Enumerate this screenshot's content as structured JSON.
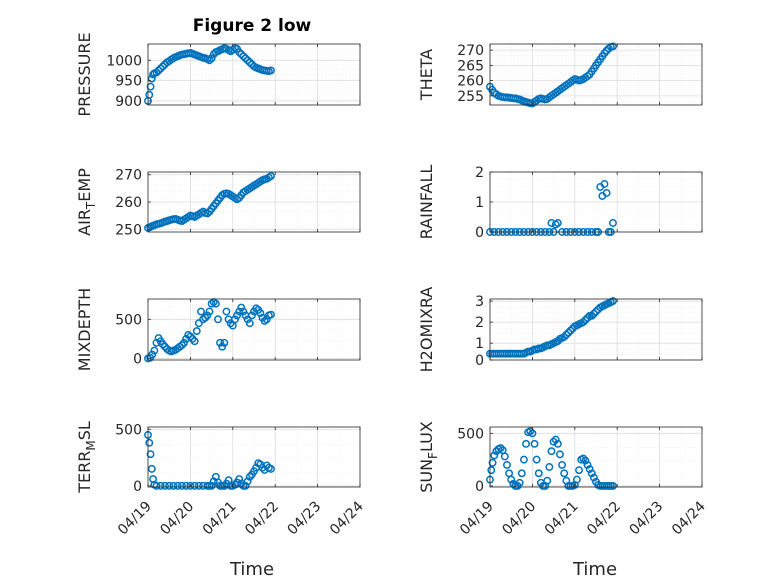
{
  "figure_title": "Figure 2 low",
  "x_axis_label": "Time",
  "marker_color": "#0072BD",
  "x_tick_labels": [
    "04/19",
    "04/20",
    "04/21",
    "04/22",
    "04/23",
    "04/24"
  ],
  "chart_data": [
    {
      "type": "scatter",
      "ylabel": "PRESSURE",
      "ylim": [
        890,
        1040
      ],
      "yticks": [
        "900",
        "950",
        "1000"
      ],
      "grid": "on",
      "x": [
        0,
        0.03,
        0.06,
        0.09,
        0.12,
        0.15,
        0.2,
        0.25,
        0.3,
        0.35,
        0.4,
        0.45,
        0.5,
        0.55,
        0.6,
        0.65,
        0.7,
        0.75,
        0.8,
        0.85,
        0.9,
        0.95,
        1.0,
        1.05,
        1.1,
        1.15,
        1.2,
        1.25,
        1.3,
        1.35,
        1.4,
        1.45,
        1.5,
        1.55,
        1.6,
        1.65,
        1.7,
        1.75,
        1.8,
        1.85,
        1.9,
        1.95,
        2.0,
        2.05,
        2.1,
        2.15,
        2.2,
        2.25,
        2.3,
        2.35,
        2.4,
        2.45,
        2.5,
        2.55,
        2.6,
        2.65,
        2.7,
        2.75,
        2.8,
        2.85,
        2.9
      ],
      "y": [
        900,
        915,
        935,
        955,
        965,
        968,
        970,
        975,
        980,
        985,
        990,
        995,
        998,
        1002,
        1005,
        1008,
        1010,
        1012,
        1014,
        1015,
        1016,
        1017,
        1018,
        1016,
        1014,
        1012,
        1010,
        1008,
        1006,
        1005,
        1003,
        1000,
        1005,
        1015,
        1020,
        1022,
        1025,
        1027,
        1030,
        1028,
        1025,
        1022,
        1026,
        1030,
        1028,
        1020,
        1015,
        1010,
        1005,
        1000,
        995,
        990,
        985,
        982,
        980,
        978,
        976,
        975,
        974,
        973,
        975
      ]
    },
    {
      "type": "scatter",
      "ylabel": "THETA",
      "ylim": [
        252,
        272
      ],
      "yticks": [
        "255",
        "260",
        "265",
        "270"
      ],
      "grid": "on",
      "x": [
        0,
        0.05,
        0.1,
        0.15,
        0.2,
        0.25,
        0.3,
        0.35,
        0.4,
        0.45,
        0.5,
        0.55,
        0.6,
        0.65,
        0.7,
        0.75,
        0.8,
        0.85,
        0.9,
        0.95,
        1.0,
        1.05,
        1.1,
        1.15,
        1.2,
        1.25,
        1.3,
        1.35,
        1.4,
        1.45,
        1.5,
        1.55,
        1.6,
        1.65,
        1.7,
        1.75,
        1.8,
        1.85,
        1.9,
        1.95,
        2.0,
        2.05,
        2.1,
        2.15,
        2.2,
        2.25,
        2.3,
        2.35,
        2.4,
        2.45,
        2.5,
        2.55,
        2.6,
        2.65,
        2.7,
        2.75,
        2.8,
        2.85,
        2.9
      ],
      "y": [
        258,
        257,
        256,
        255.5,
        255,
        254.8,
        254.6,
        254.5,
        254.5,
        254.4,
        254.3,
        254.2,
        254.2,
        254,
        253.8,
        253.5,
        253.2,
        253,
        252.8,
        252.6,
        252.5,
        253,
        253.5,
        254,
        254.2,
        254,
        253.8,
        254,
        254.5,
        255,
        255.5,
        256,
        256.5,
        257,
        257.5,
        258,
        258.5,
        259,
        259.5,
        260,
        260.5,
        260.3,
        260,
        260.2,
        260.5,
        261,
        261.5,
        262,
        263,
        264,
        265,
        266,
        267,
        268,
        269,
        269.8,
        270.5,
        271,
        271.2
      ]
    },
    {
      "type": "scatter",
      "ylabel": "AIR_TEMP",
      "ylim": [
        249,
        271
      ],
      "yticks": [
        "250",
        "260",
        "270"
      ],
      "grid": "on",
      "x": [
        0,
        0.05,
        0.1,
        0.15,
        0.2,
        0.25,
        0.3,
        0.35,
        0.4,
        0.45,
        0.5,
        0.55,
        0.6,
        0.65,
        0.7,
        0.75,
        0.8,
        0.85,
        0.9,
        0.95,
        1.0,
        1.05,
        1.1,
        1.15,
        1.2,
        1.25,
        1.3,
        1.35,
        1.4,
        1.45,
        1.5,
        1.55,
        1.6,
        1.65,
        1.7,
        1.75,
        1.8,
        1.85,
        1.9,
        1.95,
        2.0,
        2.05,
        2.1,
        2.15,
        2.2,
        2.25,
        2.3,
        2.35,
        2.4,
        2.45,
        2.5,
        2.55,
        2.6,
        2.65,
        2.7,
        2.75,
        2.8,
        2.85,
        2.9
      ],
      "y": [
        250.5,
        250.8,
        251.2,
        251.5,
        251.8,
        252,
        252.2,
        252.5,
        252.8,
        253,
        253.3,
        253.5,
        253.7,
        253.8,
        253.5,
        253.2,
        253,
        253.5,
        254,
        254.5,
        255,
        254.8,
        254.5,
        255,
        255.5,
        256,
        256.5,
        256,
        255.8,
        256.5,
        257.5,
        258.5,
        259.5,
        260.5,
        261.5,
        262.5,
        263,
        263.2,
        263,
        262.5,
        262,
        261.5,
        261,
        261.5,
        262.5,
        263.5,
        264,
        264.5,
        265,
        265.5,
        266,
        266.5,
        267,
        267.5,
        268,
        268.3,
        268.5,
        269,
        269.5
      ]
    },
    {
      "type": "scatter",
      "ylabel": "RAINFALL",
      "ylim": [
        0,
        2
      ],
      "yticks": [
        "0",
        "1",
        "2"
      ],
      "grid": "on",
      "x": [
        0,
        0.1,
        0.2,
        0.3,
        0.4,
        0.5,
        0.6,
        0.7,
        0.8,
        0.9,
        1.0,
        1.1,
        1.2,
        1.3,
        1.4,
        1.45,
        1.5,
        1.55,
        1.6,
        1.7,
        1.8,
        1.9,
        2.0,
        2.1,
        2.2,
        2.3,
        2.4,
        2.5,
        2.55,
        2.6,
        2.65,
        2.7,
        2.75,
        2.8,
        2.85,
        2.9
      ],
      "y": [
        0,
        0,
        0,
        0,
        0,
        0,
        0,
        0,
        0,
        0,
        0,
        0,
        0,
        0,
        0,
        0.3,
        0,
        0.25,
        0.3,
        0,
        0,
        0,
        0,
        0,
        0,
        0,
        0,
        0,
        0,
        1.5,
        1.2,
        1.6,
        1.3,
        0,
        0,
        0.3
      ]
    },
    {
      "type": "scatter",
      "ylabel": "MIXDEPTH",
      "ylim": [
        -20,
        760
      ],
      "yticks": [
        "0",
        "500"
      ],
      "grid": "on",
      "x": [
        0,
        0.05,
        0.1,
        0.15,
        0.2,
        0.25,
        0.3,
        0.35,
        0.4,
        0.45,
        0.5,
        0.55,
        0.6,
        0.65,
        0.7,
        0.75,
        0.8,
        0.85,
        0.9,
        0.95,
        1.0,
        1.05,
        1.1,
        1.15,
        1.2,
        1.25,
        1.3,
        1.35,
        1.4,
        1.45,
        1.5,
        1.55,
        1.6,
        1.65,
        1.7,
        1.75,
        1.8,
        1.85,
        1.9,
        1.95,
        2.0,
        2.05,
        2.1,
        2.15,
        2.2,
        2.25,
        2.3,
        2.35,
        2.4,
        2.45,
        2.5,
        2.55,
        2.6,
        2.65,
        2.7,
        2.75,
        2.8,
        2.85,
        2.9
      ],
      "y": [
        0,
        10,
        50,
        100,
        200,
        260,
        220,
        180,
        150,
        120,
        100,
        90,
        100,
        110,
        130,
        150,
        170,
        200,
        250,
        300,
        280,
        250,
        220,
        350,
        450,
        600,
        500,
        520,
        550,
        600,
        700,
        720,
        700,
        500,
        200,
        150,
        200,
        600,
        500,
        450,
        420,
        500,
        550,
        600,
        650,
        600,
        550,
        500,
        450,
        550,
        600,
        640,
        620,
        580,
        520,
        480,
        500,
        550,
        560
      ]
    },
    {
      "type": "scatter",
      "ylabel": "H2OMIXRA",
      "ylim": [
        0.2,
        3.1
      ],
      "yticks": [
        "0",
        "1",
        "2",
        "3"
      ],
      "grid": "on",
      "x": [
        0,
        0.05,
        0.1,
        0.15,
        0.2,
        0.25,
        0.3,
        0.35,
        0.4,
        0.45,
        0.5,
        0.55,
        0.6,
        0.65,
        0.7,
        0.75,
        0.8,
        0.85,
        0.9,
        0.95,
        1.0,
        1.05,
        1.1,
        1.15,
        1.2,
        1.25,
        1.3,
        1.35,
        1.4,
        1.45,
        1.5,
        1.55,
        1.6,
        1.65,
        1.7,
        1.75,
        1.8,
        1.85,
        1.9,
        1.95,
        2.0,
        2.05,
        2.1,
        2.15,
        2.2,
        2.25,
        2.3,
        2.35,
        2.4,
        2.45,
        2.5,
        2.55,
        2.6,
        2.65,
        2.7,
        2.75,
        2.8,
        2.85,
        2.9
      ],
      "y": [
        0.5,
        0.5,
        0.5,
        0.5,
        0.5,
        0.5,
        0.5,
        0.5,
        0.5,
        0.5,
        0.5,
        0.5,
        0.5,
        0.5,
        0.5,
        0.5,
        0.5,
        0.55,
        0.6,
        0.6,
        0.65,
        0.7,
        0.7,
        0.75,
        0.75,
        0.8,
        0.85,
        0.9,
        0.9,
        0.95,
        1.0,
        1.05,
        1.1,
        1.2,
        1.25,
        1.3,
        1.4,
        1.5,
        1.6,
        1.7,
        1.8,
        1.85,
        1.9,
        1.95,
        2.0,
        2.1,
        2.2,
        2.3,
        2.3,
        2.4,
        2.5,
        2.6,
        2.7,
        2.75,
        2.8,
        2.85,
        2.9,
        2.95,
        3.0
      ]
    },
    {
      "type": "scatter",
      "ylabel": "TERR_MSL",
      "ylim": [
        -10,
        520
      ],
      "yticks": [
        "0",
        "500"
      ],
      "grid": "on",
      "x": [
        0,
        0.03,
        0.06,
        0.09,
        0.12,
        0.15,
        0.2,
        0.3,
        0.4,
        0.5,
        0.6,
        0.7,
        0.8,
        0.9,
        1.0,
        1.1,
        1.2,
        1.3,
        1.4,
        1.45,
        1.5,
        1.55,
        1.6,
        1.65,
        1.7,
        1.75,
        1.8,
        1.85,
        1.9,
        1.95,
        2.0,
        2.05,
        2.1,
        2.15,
        2.2,
        2.25,
        2.3,
        2.35,
        2.4,
        2.45,
        2.5,
        2.55,
        2.6,
        2.65,
        2.7,
        2.75,
        2.8,
        2.85,
        2.9
      ],
      "y": [
        450,
        380,
        280,
        150,
        60,
        10,
        0,
        0,
        0,
        0,
        0,
        0,
        0,
        0,
        0,
        0,
        0,
        0,
        0,
        0,
        0,
        40,
        80,
        30,
        0,
        0,
        0,
        20,
        50,
        0,
        0,
        10,
        30,
        60,
        20,
        0,
        0,
        40,
        80,
        100,
        130,
        160,
        200,
        190,
        160,
        140,
        180,
        160,
        150
      ]
    },
    {
      "type": "scatter",
      "ylabel": "SUN_FLUX",
      "ylim": [
        -10,
        560
      ],
      "yticks": [
        "0",
        "500"
      ],
      "grid": "on",
      "x": [
        0,
        0.03,
        0.06,
        0.1,
        0.15,
        0.2,
        0.25,
        0.3,
        0.35,
        0.4,
        0.45,
        0.5,
        0.55,
        0.6,
        0.65,
        0.7,
        0.75,
        0.8,
        0.85,
        0.9,
        0.95,
        1.0,
        1.05,
        1.1,
        1.15,
        1.2,
        1.25,
        1.3,
        1.35,
        1.4,
        1.45,
        1.5,
        1.55,
        1.6,
        1.65,
        1.7,
        1.75,
        1.8,
        1.85,
        1.9,
        1.95,
        2.0,
        2.05,
        2.1,
        2.15,
        2.2,
        2.25,
        2.3,
        2.35,
        2.4,
        2.45,
        2.5,
        2.55,
        2.6,
        2.65,
        2.7,
        2.75,
        2.8,
        2.85,
        2.9
      ],
      "y": [
        60,
        150,
        220,
        290,
        330,
        350,
        360,
        340,
        280,
        200,
        120,
        60,
        20,
        0,
        0,
        30,
        120,
        250,
        400,
        510,
        520,
        500,
        400,
        250,
        120,
        30,
        0,
        0,
        50,
        180,
        330,
        420,
        440,
        400,
        300,
        200,
        120,
        50,
        0,
        0,
        0,
        10,
        60,
        150,
        250,
        260,
        240,
        200,
        160,
        120,
        80,
        40,
        10,
        0,
        0,
        0,
        0,
        0,
        0,
        0
      ]
    }
  ]
}
